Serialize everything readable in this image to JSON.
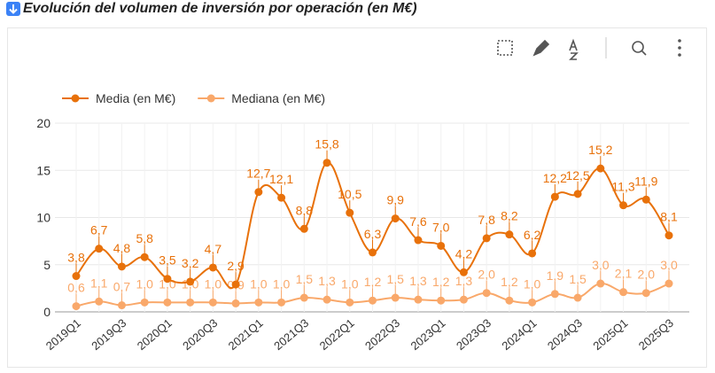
{
  "chart_data": {
    "type": "line",
    "title": "Evolución del volumen de inversión por operación (en M€)",
    "categories": [
      "2019Q1",
      null,
      "2019Q3",
      null,
      "2020Q1",
      null,
      "2020Q3",
      null,
      "2021Q1",
      null,
      "2021Q3",
      null,
      "2022Q1",
      null,
      "2022Q3",
      null,
      "2023Q1",
      null,
      "2023Q3",
      null,
      "2024Q1",
      null,
      "2024Q3",
      null,
      "2025Q1",
      null,
      "2025Q3"
    ],
    "series": [
      {
        "name": "Media (en M€)",
        "color": "#e8710a",
        "values": [
          3.8,
          6.7,
          4.8,
          5.8,
          3.5,
          3.2,
          4.7,
          2.9,
          12.7,
          12.1,
          8.8,
          15.8,
          10.5,
          6.3,
          9.9,
          7.6,
          7.0,
          4.2,
          7.8,
          8.2,
          6.2,
          12.2,
          12.5,
          15.2,
          11.3,
          11.9,
          8.1
        ],
        "value_labels": [
          "3,8",
          "6,7",
          "4,8",
          "5,8",
          "3,5",
          "3,2",
          "4,7",
          "2,9",
          "12,7",
          "12,1",
          "8,8",
          "15,8",
          "10,5",
          "6,3",
          "9,9",
          "7,6",
          "7,0",
          "4,2",
          "7,8",
          "8,2",
          "6,2",
          "12,2",
          "12,5",
          "15,2",
          "11,3",
          "11,9",
          "8,1"
        ]
      },
      {
        "name": "Mediana (en M€)",
        "color": "#f9a86a",
        "values": [
          0.6,
          1.1,
          0.7,
          1.0,
          1.0,
          1.0,
          1.0,
          0.9,
          1.0,
          1.0,
          1.5,
          1.3,
          1.0,
          1.2,
          1.5,
          1.3,
          1.2,
          1.3,
          2.0,
          1.2,
          1.0,
          1.9,
          1.5,
          3.0,
          2.1,
          2.0,
          3.0
        ],
        "value_labels": [
          "0,6",
          "1,1",
          "0,7",
          "1,0",
          "1,0",
          "1,0",
          "1,0",
          "0,9",
          "1,0",
          "1,0",
          "1,5",
          "1,3",
          "1,0",
          "1,2",
          "1,5",
          "1,3",
          "1,2",
          "1,3",
          "2,0",
          "1,2",
          "1,0",
          "1,9",
          "1,5",
          "3,0",
          "2,1",
          "2,0",
          "3,0"
        ]
      }
    ],
    "ylim": [
      0,
      20
    ],
    "yticks": [
      0,
      5,
      10,
      15,
      20
    ],
    "grid": true,
    "legend": "top-left"
  }
}
